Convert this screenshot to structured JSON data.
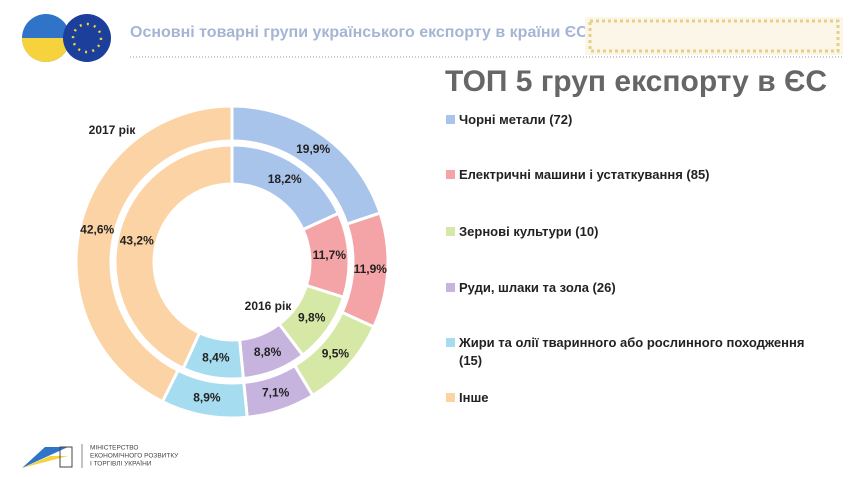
{
  "header": {
    "title": "Основні товарні групи українського експорту в країни ЄС"
  },
  "footer": {
    "lines": [
      "МІНІСТЕРСТВО",
      "ЕКОНОМІЧНОГО РОЗВИТКУ",
      "І ТОРГІВЛІ УКРАЇНИ"
    ]
  },
  "chart_data": {
    "type": "pie",
    "title": "ТОП 5 груп експорту в ЄС",
    "categories": [
      "Чорні метали (72)",
      "Електричні машини і устаткування (85)",
      "Зернові культури (10)",
      "Руди, шлаки та зола (26)",
      "Жири та олії тваринного або рослинного походження (15)",
      "Інше"
    ],
    "colors": [
      "#a9c4eb",
      "#f4a3a6",
      "#d6e8a6",
      "#c6b4de",
      "#a5dcef",
      "#fcd3a4"
    ],
    "series": [
      {
        "name": "2017 рік",
        "values": [
          19.9,
          11.9,
          9.5,
          7.1,
          8.9,
          42.6
        ],
        "value_labels": [
          "19,9%",
          "11,9%",
          "9,5%",
          "7,1%",
          "8,9%",
          "42,6%"
        ]
      },
      {
        "name": "2016 рік",
        "values": [
          18.2,
          11.7,
          9.8,
          8.8,
          8.4,
          43.2
        ],
        "value_labels": [
          "18,2%",
          "11,7%",
          "9,8%",
          "8,8%",
          "8,4%",
          "43,2%"
        ]
      }
    ]
  }
}
